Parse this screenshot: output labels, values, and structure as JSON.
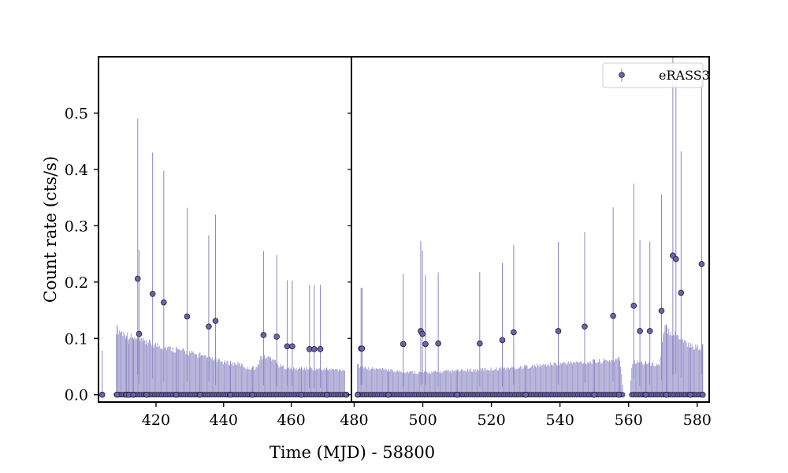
{
  "chart_data": {
    "type": "scatter",
    "xlabel": "Time (MJD) - 58800",
    "ylabel": "Count rate (cts/s)",
    "ylim": [
      -0.013,
      0.6
    ],
    "y_ticks": [
      0.0,
      0.1,
      0.2,
      0.3,
      0.4,
      0.5
    ],
    "y_tick_labels": [
      "0.0",
      "0.1",
      "0.2",
      "0.3",
      "0.4",
      "0.5"
    ],
    "legend_position": "top-right",
    "marker_color": "#6a62b2",
    "errorbar_color": "#8d87c4",
    "axes_color": "#000000",
    "panels": [
      {
        "xlim": [
          403,
          477.8
        ],
        "x_ticks": [
          420,
          440,
          460
        ],
        "x_tick_labels": [
          "420",
          "440",
          "460"
        ],
        "upper_envelope": [
          [
            408.3,
            0.125
          ],
          [
            414,
            0.105
          ],
          [
            420,
            0.095
          ],
          [
            425,
            0.087
          ],
          [
            430,
            0.08
          ],
          [
            435,
            0.07
          ],
          [
            440,
            0.062
          ],
          [
            445,
            0.058
          ],
          [
            447,
            0.05
          ],
          [
            450,
            0.052
          ],
          [
            451,
            0.072
          ],
          [
            455,
            0.07
          ],
          [
            456,
            0.056
          ],
          [
            460,
            0.049
          ],
          [
            465,
            0.05
          ],
          [
            470,
            0.048
          ],
          [
            475.8,
            0.048
          ]
        ],
        "points": [
          {
            "x": 404.1,
            "y": 0.0,
            "yerr_up": 0.078
          },
          {
            "x": 414.6,
            "y": 0.206,
            "yerr_up": 0.49
          },
          {
            "x": 415.0,
            "y": 0.108,
            "yerr_up": 0.257
          },
          {
            "x": 419.0,
            "y": 0.179,
            "yerr_up": 0.43
          },
          {
            "x": 422.3,
            "y": 0.164,
            "yerr_up": 0.398
          },
          {
            "x": 429.2,
            "y": 0.139,
            "yerr_up": 0.332
          },
          {
            "x": 435.6,
            "y": 0.121,
            "yerr_up": 0.283
          },
          {
            "x": 437.6,
            "y": 0.131,
            "yerr_up": 0.32
          },
          {
            "x": 451.8,
            "y": 0.106,
            "yerr_up": 0.255
          },
          {
            "x": 455.7,
            "y": 0.103,
            "yerr_up": 0.248
          },
          {
            "x": 458.8,
            "y": 0.086,
            "yerr_up": 0.203
          },
          {
            "x": 460.3,
            "y": 0.086,
            "yerr_up": 0.203
          },
          {
            "x": 465.4,
            "y": 0.081,
            "yerr_up": 0.195
          },
          {
            "x": 466.8,
            "y": 0.081,
            "yerr_up": 0.195
          },
          {
            "x": 468.6,
            "y": 0.081,
            "yerr_up": 0.195
          },
          {
            "x": 408.5,
            "y": 0.0,
            "yerr_up": 0.123
          },
          {
            "x": 411.2,
            "y": 0.0,
            "yerr_up": 0.105
          },
          {
            "x": 412.0,
            "y": 0.0,
            "yerr_up": 0.09
          },
          {
            "x": 413.3,
            "y": 0.0,
            "yerr_up": 0.1
          },
          {
            "x": 417.2,
            "y": 0.0,
            "yerr_up": 0.097
          },
          {
            "x": 426.0,
            "y": 0.0,
            "yerr_up": 0.085
          },
          {
            "x": 433.0,
            "y": 0.0,
            "yerr_up": 0.075
          },
          {
            "x": 442.0,
            "y": 0.0,
            "yerr_up": 0.06
          },
          {
            "x": 448.5,
            "y": 0.0,
            "yerr_up": 0.05
          },
          {
            "x": 463.0,
            "y": 0.0,
            "yerr_up": 0.049
          },
          {
            "x": 470.5,
            "y": 0.0,
            "yerr_up": 0.048
          },
          {
            "x": 476.3,
            "y": 0.0,
            "yerr_up": 0.0
          }
        ]
      },
      {
        "xlim": [
          479.2,
          583.5
        ],
        "x_ticks": [
          480,
          500,
          520,
          540,
          560,
          580
        ],
        "x_tick_labels": [
          "480",
          "500",
          "520",
          "540",
          "560",
          "580"
        ],
        "upper_envelope": [
          [
            481.0,
            0.055
          ],
          [
            485,
            0.05
          ],
          [
            490,
            0.046
          ],
          [
            500,
            0.042
          ],
          [
            510,
            0.045
          ],
          [
            520,
            0.049
          ],
          [
            530,
            0.053
          ],
          [
            540,
            0.06
          ],
          [
            550,
            0.063
          ],
          [
            557.5,
            0.067
          ],
          [
            558.5,
            0.0
          ],
          [
            560.4,
            0.0
          ],
          [
            561,
            0.063
          ],
          [
            566,
            0.059
          ],
          [
            569,
            0.057
          ],
          [
            570.5,
            0.128
          ],
          [
            575,
            0.11
          ],
          [
            578,
            0.092
          ],
          [
            581.5,
            0.09
          ]
        ],
        "points": [
          {
            "x": 482.0,
            "y": 0.082,
            "yerr_up": 0.19
          },
          {
            "x": 482.3,
            "y": 0.082,
            "yerr_up": 0.19
          },
          {
            "x": 494.3,
            "y": 0.09,
            "yerr_up": 0.215
          },
          {
            "x": 499.4,
            "y": 0.113,
            "yerr_up": 0.273
          },
          {
            "x": 499.9,
            "y": 0.108,
            "yerr_up": 0.256
          },
          {
            "x": 500.8,
            "y": 0.09,
            "yerr_up": 0.212
          },
          {
            "x": 504.5,
            "y": 0.091,
            "yerr_up": 0.217
          },
          {
            "x": 516.6,
            "y": 0.091,
            "yerr_up": 0.218
          },
          {
            "x": 523.2,
            "y": 0.097,
            "yerr_up": 0.234
          },
          {
            "x": 526.5,
            "y": 0.111,
            "yerr_up": 0.266
          },
          {
            "x": 539.5,
            "y": 0.113,
            "yerr_up": 0.271
          },
          {
            "x": 547.2,
            "y": 0.121,
            "yerr_up": 0.289
          },
          {
            "x": 555.5,
            "y": 0.14,
            "yerr_up": 0.333
          },
          {
            "x": 561.5,
            "y": 0.158,
            "yerr_up": 0.375
          },
          {
            "x": 563.3,
            "y": 0.113,
            "yerr_up": 0.275
          },
          {
            "x": 566.2,
            "y": 0.113,
            "yerr_up": 0.272
          },
          {
            "x": 569.6,
            "y": 0.149,
            "yerr_up": 0.355
          },
          {
            "x": 572.9,
            "y": 0.247,
            "yerr_up": 0.6
          },
          {
            "x": 573.8,
            "y": 0.241,
            "yerr_up": 0.58
          },
          {
            "x": 575.3,
            "y": 0.181,
            "yerr_up": 0.432
          },
          {
            "x": 581.3,
            "y": 0.232,
            "yerr_up": 0.56
          },
          {
            "x": 481.0,
            "y": 0.0,
            "yerr_up": 0.055
          },
          {
            "x": 490.0,
            "y": 0.0,
            "yerr_up": 0.046
          },
          {
            "x": 510.0,
            "y": 0.0,
            "yerr_up": 0.045
          },
          {
            "x": 530.0,
            "y": 0.0,
            "yerr_up": 0.053
          },
          {
            "x": 550.0,
            "y": 0.0,
            "yerr_up": 0.063
          },
          {
            "x": 557.2,
            "y": 0.0,
            "yerr_up": 0.067
          },
          {
            "x": 565.0,
            "y": 0.0,
            "yerr_up": 0.06
          },
          {
            "x": 571.0,
            "y": 0.0,
            "yerr_up": 0.125
          },
          {
            "x": 578.0,
            "y": 0.0,
            "yerr_up": 0.092
          },
          {
            "x": 581.6,
            "y": 0.0,
            "yerr_up": 0.09
          }
        ]
      }
    ],
    "series": [
      {
        "name": "eRASS3"
      }
    ]
  }
}
